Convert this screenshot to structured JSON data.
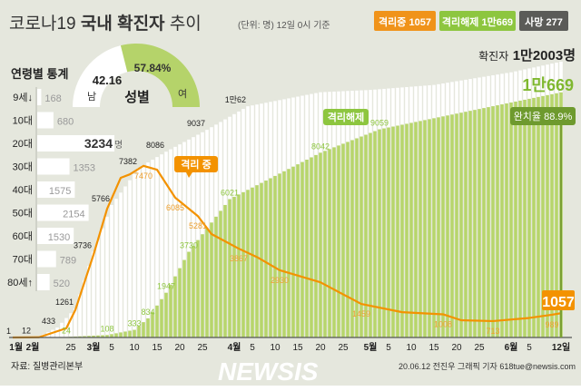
{
  "header": {
    "title_prefix": "코로나19",
    "title_bold": "국내 확진자",
    "title_suffix": "추이",
    "unit_note": "(단위: 명) 12일 0시 기준",
    "badges": [
      {
        "label": "격리중 1057",
        "color": "#f0931a"
      },
      {
        "label": "격리해제 1만669",
        "color": "#8dc63f"
      },
      {
        "label": "사망 277",
        "color": "#5b5b58"
      }
    ]
  },
  "totals": {
    "confirmed_label": "확진자",
    "confirmed_value": "1만2003명",
    "released_value": "1만669",
    "recovery_rate": "완치율 88.9%",
    "isolating_value": "1057"
  },
  "age_stats": {
    "title": "연령별 통계",
    "unit": "명",
    "items": [
      {
        "label": "9세↓",
        "value": 168
      },
      {
        "label": "10대",
        "value": 680
      },
      {
        "label": "20대",
        "value": 3234
      },
      {
        "label": "30대",
        "value": 1353
      },
      {
        "label": "40대",
        "value": 1575
      },
      {
        "label": "50대",
        "value": 2154
      },
      {
        "label": "60대",
        "value": 1530
      },
      {
        "label": "70대",
        "value": 789
      },
      {
        "label": "80세↑",
        "value": 520
      }
    ]
  },
  "gender": {
    "title": "성별",
    "male_label": "남",
    "male_pct": "42.16",
    "female_label": "여",
    "female_pct": "57.84%",
    "male_value": 42.16,
    "female_value": 57.84
  },
  "chart_data": {
    "type": "bar",
    "x_start": "2020-01-20",
    "x_end": "2020-06-12",
    "x_ticks": [
      {
        "date": "2020-01-22",
        "label": "1월",
        "bold": true
      },
      {
        "date": "2020-02-01",
        "label": "2월",
        "bold": true
      },
      {
        "date": "2020-02-25",
        "label": "25"
      },
      {
        "date": "2020-03-01",
        "label": "3월",
        "bold": true
      },
      {
        "date": "2020-03-05",
        "label": "5"
      },
      {
        "date": "2020-03-10",
        "label": "10"
      },
      {
        "date": "2020-03-15",
        "label": "15"
      },
      {
        "date": "2020-03-20",
        "label": "20"
      },
      {
        "date": "2020-03-25",
        "label": "25"
      },
      {
        "date": "2020-04-01",
        "label": "4월",
        "bold": true
      },
      {
        "date": "2020-04-05",
        "label": "5"
      },
      {
        "date": "2020-04-10",
        "label": "10"
      },
      {
        "date": "2020-04-15",
        "label": "15"
      },
      {
        "date": "2020-04-20",
        "label": "20"
      },
      {
        "date": "2020-04-25",
        "label": "25"
      },
      {
        "date": "2020-05-01",
        "label": "5월",
        "bold": true
      },
      {
        "date": "2020-05-05",
        "label": "5"
      },
      {
        "date": "2020-05-10",
        "label": "10"
      },
      {
        "date": "2020-05-15",
        "label": "15"
      },
      {
        "date": "2020-05-20",
        "label": "20"
      },
      {
        "date": "2020-05-25",
        "label": "25"
      },
      {
        "date": "2020-06-01",
        "label": "6월",
        "bold": true
      },
      {
        "date": "2020-06-05",
        "label": "5"
      },
      {
        "date": "2020-06-12",
        "label": "12일",
        "bold": true
      }
    ],
    "ylim": [
      0,
      12003
    ],
    "series": [
      {
        "name": "확진자",
        "color": "#ffffff",
        "points": [
          {
            "date": "2020-01-20",
            "value": 1,
            "label": "1"
          },
          {
            "date": "2020-02-01",
            "value": 12,
            "label": "12"
          },
          {
            "date": "2020-02-18",
            "value": 31
          },
          {
            "date": "2020-02-22",
            "value": 433,
            "label": "433"
          },
          {
            "date": "2020-02-26",
            "value": 1261,
            "label": "1261"
          },
          {
            "date": "2020-03-01",
            "value": 3736,
            "label": "3736"
          },
          {
            "date": "2020-03-05",
            "value": 5766,
            "label": "5766"
          },
          {
            "date": "2020-03-11",
            "value": 7382,
            "label": "7382"
          },
          {
            "date": "2020-03-17",
            "value": 8086,
            "label": "8086"
          },
          {
            "date": "2020-03-26",
            "value": 9037,
            "label": "9037"
          },
          {
            "date": "2020-04-04",
            "value": 10062,
            "label": "1만62"
          },
          {
            "date": "2020-04-20",
            "value": 10674
          },
          {
            "date": "2020-05-01",
            "value": 10774
          },
          {
            "date": "2020-05-15",
            "value": 10991
          },
          {
            "date": "2020-06-01",
            "value": 11541
          },
          {
            "date": "2020-06-12",
            "value": 12003
          }
        ]
      },
      {
        "name": "격리해제",
        "color": "#b7d56c",
        "points": [
          {
            "date": "2020-01-20",
            "value": 0
          },
          {
            "date": "2020-02-20",
            "value": 16
          },
          {
            "date": "2020-02-24",
            "value": 24,
            "label": "24"
          },
          {
            "date": "2020-03-04",
            "value": 108,
            "label": "108"
          },
          {
            "date": "2020-03-10",
            "value": 333,
            "label": "333"
          },
          {
            "date": "2020-03-13",
            "value": 834,
            "label": "834"
          },
          {
            "date": "2020-03-17",
            "value": 1947,
            "label": "1947"
          },
          {
            "date": "2020-03-22",
            "value": 3730,
            "label": "3730"
          },
          {
            "date": "2020-03-31",
            "value": 6021,
            "label": "6021"
          },
          {
            "date": "2020-04-20",
            "value": 8042,
            "label": "8042"
          },
          {
            "date": "2020-05-03",
            "value": 9059,
            "label": "9059"
          },
          {
            "date": "2020-06-12",
            "value": 10669
          }
        ]
      },
      {
        "name": "격리 중",
        "type": "line",
        "color": "#f39200",
        "points": [
          {
            "date": "2020-01-20",
            "value": 1
          },
          {
            "date": "2020-02-18",
            "value": 10
          },
          {
            "date": "2020-02-24",
            "value": 400
          },
          {
            "date": "2020-02-26",
            "value": 1200
          },
          {
            "date": "2020-03-01",
            "value": 3600
          },
          {
            "date": "2020-03-04",
            "value": 5600
          },
          {
            "date": "2020-03-07",
            "value": 6950
          },
          {
            "date": "2020-03-09",
            "value": 7100
          },
          {
            "date": "2020-03-12",
            "value": 7470,
            "label": "7470"
          },
          {
            "date": "2020-03-15",
            "value": 7300
          },
          {
            "date": "2020-03-19",
            "value": 6085,
            "label": "6085"
          },
          {
            "date": "2020-03-24",
            "value": 5281,
            "label": "5281"
          },
          {
            "date": "2020-03-27",
            "value": 4500
          },
          {
            "date": "2020-04-02",
            "value": 3867,
            "label": "3867"
          },
          {
            "date": "2020-04-06",
            "value": 3500
          },
          {
            "date": "2020-04-11",
            "value": 2930,
            "label": "2930"
          },
          {
            "date": "2020-04-20",
            "value": 2400
          },
          {
            "date": "2020-04-29",
            "value": 1459,
            "label": "1459"
          },
          {
            "date": "2020-05-08",
            "value": 1100
          },
          {
            "date": "2020-05-17",
            "value": 1008,
            "label": "1008"
          },
          {
            "date": "2020-05-21",
            "value": 750
          },
          {
            "date": "2020-05-28",
            "value": 713,
            "label": "713"
          },
          {
            "date": "2020-06-05",
            "value": 850
          },
          {
            "date": "2020-06-10",
            "value": 989,
            "label": "989"
          },
          {
            "date": "2020-06-12",
            "value": 1057
          }
        ]
      }
    ],
    "annotations": [
      {
        "text": "격리 중",
        "color": "#f39200"
      },
      {
        "text": "격리해제",
        "color": "#8dc63f"
      }
    ]
  },
  "footer": {
    "source": "자료: 질병관리본부",
    "credit": "20.06.12 전진우 그래픽 기자 618tue@newsis.com",
    "watermark": "NEWSIS"
  }
}
